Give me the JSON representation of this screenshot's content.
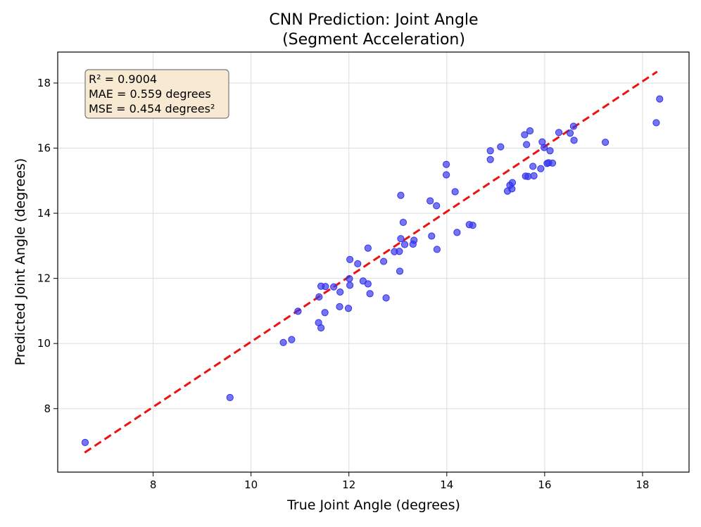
{
  "chart_data": {
    "type": "scatter",
    "title": [
      "CNN Prediction: Joint Angle",
      "(Segment Acceleration)"
    ],
    "xlabel": "True Joint Angle (degrees)",
    "ylabel": "Predicted Joint Angle (degrees)",
    "xlim": [
      6.05,
      18.95
    ],
    "ylim": [
      6.05,
      18.95
    ],
    "xticks": [
      8,
      10,
      12,
      14,
      16,
      18
    ],
    "yticks": [
      8,
      10,
      12,
      14,
      16,
      18
    ],
    "grid": true,
    "stats_box": {
      "lines": [
        "R² = 0.9004",
        "MAE = 0.559 degrees",
        "MSE = 0.454 degrees²"
      ],
      "placement": "top-left"
    },
    "reference_line": {
      "style": "dashed",
      "color": "#ee1111",
      "from": [
        6.6,
        6.65
      ],
      "to": [
        18.3,
        18.35
      ]
    },
    "series": [
      {
        "marker_color": "#3333ee",
        "points": [
          [
            6.61,
            6.96
          ],
          [
            9.57,
            8.34
          ],
          [
            10.66,
            10.03
          ],
          [
            10.83,
            10.12
          ],
          [
            10.96,
            10.99
          ],
          [
            11.38,
            10.64
          ],
          [
            11.43,
            10.48
          ],
          [
            11.39,
            11.43
          ],
          [
            11.43,
            11.76
          ],
          [
            11.52,
            11.75
          ],
          [
            11.51,
            10.95
          ],
          [
            11.69,
            11.74
          ],
          [
            11.81,
            11.13
          ],
          [
            11.82,
            11.58
          ],
          [
            11.99,
            11.08
          ],
          [
            12.01,
            11.99
          ],
          [
            12.02,
            11.79
          ],
          [
            12.02,
            12.58
          ],
          [
            12.18,
            12.45
          ],
          [
            12.29,
            11.92
          ],
          [
            12.39,
            11.83
          ],
          [
            12.39,
            12.93
          ],
          [
            12.43,
            11.53
          ],
          [
            12.71,
            12.52
          ],
          [
            12.76,
            11.4
          ],
          [
            12.93,
            12.82
          ],
          [
            13.03,
            12.83
          ],
          [
            13.04,
            12.22
          ],
          [
            13.06,
            13.22
          ],
          [
            13.06,
            14.55
          ],
          [
            13.11,
            13.72
          ],
          [
            13.14,
            13.04
          ],
          [
            13.31,
            13.05
          ],
          [
            13.33,
            13.17
          ],
          [
            13.66,
            14.38
          ],
          [
            13.69,
            13.3
          ],
          [
            13.79,
            14.23
          ],
          [
            13.8,
            12.89
          ],
          [
            13.99,
            15.18
          ],
          [
            13.99,
            15.5
          ],
          [
            14.17,
            14.66
          ],
          [
            14.21,
            13.41
          ],
          [
            14.46,
            13.65
          ],
          [
            14.53,
            13.63
          ],
          [
            14.89,
            15.92
          ],
          [
            14.89,
            15.65
          ],
          [
            15.1,
            16.04
          ],
          [
            15.24,
            14.68
          ],
          [
            15.29,
            14.86
          ],
          [
            15.33,
            14.75
          ],
          [
            15.34,
            14.94
          ],
          [
            15.59,
            16.41
          ],
          [
            15.61,
            15.14
          ],
          [
            15.63,
            16.11
          ],
          [
            15.66,
            15.13
          ],
          [
            15.7,
            16.53
          ],
          [
            15.76,
            15.44
          ],
          [
            15.78,
            15.15
          ],
          [
            15.92,
            15.37
          ],
          [
            15.95,
            16.19
          ],
          [
            15.99,
            16.02
          ],
          [
            16.05,
            15.53
          ],
          [
            16.08,
            15.55
          ],
          [
            16.11,
            15.92
          ],
          [
            16.16,
            15.54
          ],
          [
            16.29,
            16.48
          ],
          [
            16.52,
            16.46
          ],
          [
            16.59,
            16.67
          ],
          [
            16.6,
            16.24
          ],
          [
            17.24,
            16.18
          ],
          [
            18.28,
            16.78
          ],
          [
            18.35,
            17.51
          ]
        ]
      }
    ],
    "colors": {
      "points": "#3333ee",
      "reference_line": "#ee1111",
      "stats_box_fill": "#f8e9d2",
      "stats_box_border": "#7a7a7a",
      "grid": "#dddddd"
    }
  }
}
